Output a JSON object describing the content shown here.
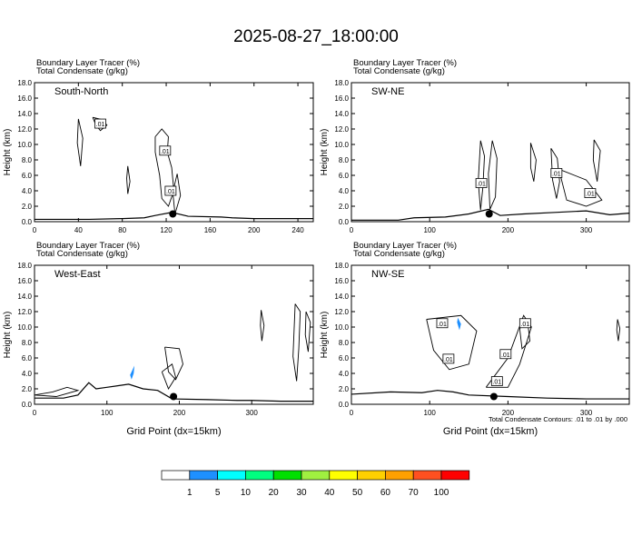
{
  "title": "2025-08-27_18:00:00",
  "colors": {
    "contour": "#000000",
    "tracer_fill": "#1e90ff",
    "terrain": "#000000",
    "marker": "#000000"
  },
  "note": "Total Condensate Contours: .01 to .01 by .000",
  "colorbar": {
    "labels": [
      "1",
      "5",
      "10",
      "20",
      "30",
      "40",
      "50",
      "60",
      "70",
      "100"
    ],
    "colors": [
      "#ffffff",
      "#1e90ff",
      "#00ffff",
      "#00ff80",
      "#00e000",
      "#a0f040",
      "#ffff00",
      "#ffd000",
      "#ffa000",
      "#ff5020",
      "#ff0000"
    ]
  },
  "chart_data": [
    {
      "type": "contour",
      "panel": "South-North",
      "header_line1": "Boundary Layer Tracer   (%)",
      "header_line2": "Total Condensate   (g/kg)",
      "ylabel": "Height (km)",
      "xlabel": "",
      "xlim": [
        0,
        254
      ],
      "ylim": [
        0,
        18
      ],
      "x_ticks": [
        "0",
        "40",
        "80",
        "120",
        "160",
        "200",
        "240"
      ],
      "x_tick_values": [
        0,
        40,
        80,
        120,
        160,
        200,
        240
      ],
      "y_ticks": [
        "0.0",
        "2.0",
        "4.0",
        "6.0",
        "8.0",
        "10.0",
        "12.0",
        "14.0",
        "16.0",
        "18.0"
      ],
      "contour_labels": [
        {
          "text": ".01",
          "x": 60,
          "y": 12.7
        },
        {
          "text": ".01",
          "x": 119,
          "y": 9.2
        },
        {
          "text": ".01",
          "x": 124,
          "y": 4.0
        }
      ],
      "marker": {
        "x": 126,
        "y": 1.0
      },
      "terrain": [
        [
          0,
          0.3
        ],
        [
          50,
          0.3
        ],
        [
          80,
          0.4
        ],
        [
          100,
          0.5
        ],
        [
          110,
          0.8
        ],
        [
          125,
          1.2
        ],
        [
          140,
          0.7
        ],
        [
          170,
          0.6
        ],
        [
          180,
          0.5
        ],
        [
          200,
          0.4
        ],
        [
          254,
          0.4
        ]
      ],
      "contours": [
        [
          [
            53,
            13.5
          ],
          [
            62,
            13.2
          ],
          [
            66,
            12.5
          ],
          [
            60,
            11.8
          ],
          [
            56,
            12.5
          ],
          [
            53,
            13.5
          ]
        ],
        [
          [
            110,
            11
          ],
          [
            116,
            12
          ],
          [
            122,
            11
          ],
          [
            121,
            9
          ],
          [
            125,
            7
          ],
          [
            127,
            4
          ],
          [
            122,
            2
          ],
          [
            116,
            3
          ],
          [
            114,
            6
          ],
          [
            110,
            9
          ],
          [
            110,
            11
          ]
        ],
        [
          [
            40,
            13.3
          ],
          [
            44,
            10.8
          ],
          [
            42,
            7.2
          ],
          [
            39,
            10.2
          ],
          [
            40,
            13.3
          ]
        ],
        [
          [
            85,
            7.2
          ],
          [
            87,
            5.2
          ],
          [
            85,
            3.6
          ],
          [
            84,
            5.6
          ],
          [
            85,
            7.2
          ]
        ],
        [
          [
            130,
            6.2
          ],
          [
            133,
            3.4
          ],
          [
            128,
            1.0
          ],
          [
            126,
            3.8
          ],
          [
            130,
            6.2
          ]
        ]
      ],
      "fills": []
    },
    {
      "type": "contour",
      "panel": "SW-NE",
      "header_line1": "Boundary Layer Tracer   (%)",
      "header_line2": "Total Condensate   (g/kg)",
      "ylabel": "Height (km)",
      "xlabel": "",
      "xlim": [
        0,
        355
      ],
      "ylim": [
        0,
        18
      ],
      "x_ticks": [
        "0",
        "100",
        "200",
        "300"
      ],
      "x_tick_values": [
        0,
        100,
        200,
        300
      ],
      "y_ticks": [
        "0.0",
        "2.0",
        "4.0",
        "6.0",
        "8.0",
        "10.0",
        "12.0",
        "14.0",
        "16.0",
        "18.0"
      ],
      "contour_labels": [
        {
          "text": ".01",
          "x": 166,
          "y": 5.0
        },
        {
          "text": ".01",
          "x": 262,
          "y": 6.3
        },
        {
          "text": ".01",
          "x": 305,
          "y": 3.7
        }
      ],
      "marker": {
        "x": 176,
        "y": 1.0
      },
      "terrain": [
        [
          0,
          0.2
        ],
        [
          60,
          0.2
        ],
        [
          80,
          0.5
        ],
        [
          120,
          0.6
        ],
        [
          150,
          1.0
        ],
        [
          175,
          1.6
        ],
        [
          190,
          0.8
        ],
        [
          220,
          1.0
        ],
        [
          260,
          1.2
        ],
        [
          300,
          1.4
        ],
        [
          330,
          0.9
        ],
        [
          355,
          1.1
        ]
      ],
      "contours": [
        [
          [
            165,
            10.5
          ],
          [
            170,
            8.5
          ],
          [
            168,
            4.5
          ],
          [
            165,
            1.5
          ],
          [
            162,
            5.2
          ],
          [
            165,
            10.5
          ]
        ],
        [
          [
            180,
            10.5
          ],
          [
            186,
            8.2
          ],
          [
            184,
            3.2
          ],
          [
            177,
            1.6
          ],
          [
            175,
            6.2
          ],
          [
            180,
            10.5
          ]
        ],
        [
          [
            255,
            9.5
          ],
          [
            263,
            8.2
          ],
          [
            266,
            5.2
          ],
          [
            262,
            3.0
          ],
          [
            257,
            5.4
          ],
          [
            255,
            9.5
          ]
        ],
        [
          [
            265,
            6.8
          ],
          [
            300,
            5.4
          ],
          [
            320,
            2.8
          ],
          [
            300,
            2.0
          ],
          [
            275,
            2.8
          ],
          [
            265,
            6.8
          ]
        ],
        [
          [
            310,
            10.6
          ],
          [
            318,
            9.2
          ],
          [
            314,
            5.2
          ],
          [
            309,
            8.0
          ],
          [
            310,
            10.6
          ]
        ],
        [
          [
            229,
            10.2
          ],
          [
            236,
            8.0
          ],
          [
            233,
            5.2
          ],
          [
            229,
            7.0
          ],
          [
            229,
            10.2
          ]
        ]
      ],
      "fills": []
    },
    {
      "type": "contour",
      "panel": "West-East",
      "header_line1": "Boundary Layer Tracer   (%)",
      "header_line2": "Total Condensate   (g/kg)",
      "ylabel": "Height (km)",
      "xlabel": "Grid Point (dx=15km)",
      "xlim": [
        0,
        385
      ],
      "ylim": [
        0,
        18
      ],
      "x_ticks": [
        "0",
        "100",
        "200",
        "300"
      ],
      "x_tick_values": [
        0,
        100,
        200,
        300
      ],
      "y_ticks": [
        "0.0",
        "2.0",
        "4.0",
        "6.0",
        "8.0",
        "10.0",
        "12.0",
        "14.0",
        "16.0",
        "18.0"
      ],
      "contour_labels": [],
      "marker": {
        "x": 192,
        "y": 1.0
      },
      "terrain": [
        [
          0,
          0.8
        ],
        [
          40,
          0.8
        ],
        [
          60,
          1.2
        ],
        [
          75,
          2.8
        ],
        [
          85,
          2.0
        ],
        [
          100,
          2.2
        ],
        [
          130,
          2.6
        ],
        [
          150,
          2.0
        ],
        [
          170,
          1.8
        ],
        [
          190,
          0.7
        ],
        [
          240,
          0.6
        ],
        [
          280,
          0.5
        ],
        [
          300,
          0.5
        ],
        [
          340,
          0.4
        ],
        [
          385,
          0.4
        ]
      ],
      "contours": [
        [
          [
            0,
            1.2
          ],
          [
            25,
            1.6
          ],
          [
            45,
            2.2
          ],
          [
            60,
            1.8
          ],
          [
            30,
            1.0
          ],
          [
            0,
            1.2
          ]
        ],
        [
          [
            180,
            7.4
          ],
          [
            200,
            7.2
          ],
          [
            205,
            5.2
          ],
          [
            195,
            3.2
          ],
          [
            185,
            4.2
          ],
          [
            180,
            7.4
          ]
        ],
        [
          [
            176,
            4.2
          ],
          [
            190,
            5.2
          ],
          [
            195,
            3.5
          ],
          [
            185,
            2.0
          ],
          [
            176,
            4.2
          ]
        ],
        [
          [
            360,
            13.0
          ],
          [
            367,
            12.0
          ],
          [
            365,
            7.2
          ],
          [
            362,
            3.0
          ],
          [
            357,
            6.2
          ],
          [
            360,
            13.0
          ]
        ],
        [
          [
            375,
            12.0
          ],
          [
            381,
            10.6
          ],
          [
            378,
            6.8
          ],
          [
            374,
            9.0
          ],
          [
            375,
            12.0
          ]
        ],
        [
          [
            313,
            12.2
          ],
          [
            317,
            10.2
          ],
          [
            314,
            8.2
          ],
          [
            312,
            10.2
          ],
          [
            313,
            12.2
          ]
        ]
      ],
      "fills": [
        [
          [
            132,
            3.8
          ],
          [
            136,
            4.6
          ],
          [
            138,
            5.0
          ],
          [
            137,
            4.0
          ],
          [
            134,
            3.2
          ],
          [
            132,
            3.8
          ]
        ]
      ]
    },
    {
      "type": "contour",
      "panel": "NW-SE",
      "header_line1": "Boundary Layer Tracer   (%)",
      "header_line2": "Total Condensate   (g/kg)",
      "ylabel": "Height (km)",
      "xlabel": "Grid Point (dx=15km)",
      "xlim": [
        0,
        355
      ],
      "ylim": [
        0,
        18
      ],
      "x_ticks": [
        "0",
        "100",
        "200",
        "300"
      ],
      "x_tick_values": [
        0,
        100,
        200,
        300
      ],
      "y_ticks": [
        "0.0",
        "2.0",
        "4.0",
        "6.0",
        "8.0",
        "10.0",
        "12.0",
        "14.0",
        "16.0",
        "18.0"
      ],
      "contour_labels": [
        {
          "text": ".01",
          "x": 116,
          "y": 10.5
        },
        {
          "text": ".01",
          "x": 124,
          "y": 5.9
        },
        {
          "text": ".01",
          "x": 197,
          "y": 6.5
        },
        {
          "text": ".01",
          "x": 222,
          "y": 10.5
        },
        {
          "text": ".01",
          "x": 186,
          "y": 3.0
        }
      ],
      "marker": {
        "x": 182,
        "y": 1.0
      },
      "terrain": [
        [
          0,
          1.3
        ],
        [
          50,
          1.6
        ],
        [
          90,
          1.5
        ],
        [
          110,
          1.8
        ],
        [
          130,
          1.6
        ],
        [
          150,
          1.2
        ],
        [
          200,
          1.0
        ],
        [
          250,
          0.8
        ],
        [
          300,
          0.7
        ],
        [
          355,
          0.7
        ]
      ],
      "contours": [
        [
          [
            96,
            11.0
          ],
          [
            140,
            11.5
          ],
          [
            160,
            9.5
          ],
          [
            150,
            5.2
          ],
          [
            125,
            4.5
          ],
          [
            105,
            7.0
          ],
          [
            96,
            11.0
          ]
        ],
        [
          [
            172,
            2.2
          ],
          [
            200,
            6.0
          ],
          [
            220,
            11.5
          ],
          [
            230,
            10.0
          ],
          [
            215,
            5.2
          ],
          [
            200,
            2.2
          ],
          [
            172,
            2.2
          ]
        ],
        [
          [
            215,
            9.8
          ],
          [
            225,
            10.8
          ],
          [
            228,
            8.2
          ],
          [
            218,
            7.2
          ],
          [
            215,
            9.8
          ]
        ],
        [
          [
            340,
            11.0
          ],
          [
            343,
            9.8
          ],
          [
            341,
            8.2
          ],
          [
            339,
            9.6
          ],
          [
            340,
            11.0
          ]
        ]
      ],
      "fills": [
        [
          [
            136,
            11.2
          ],
          [
            140,
            10.4
          ],
          [
            138,
            9.6
          ],
          [
            135,
            10.6
          ],
          [
            136,
            11.2
          ]
        ]
      ]
    }
  ]
}
